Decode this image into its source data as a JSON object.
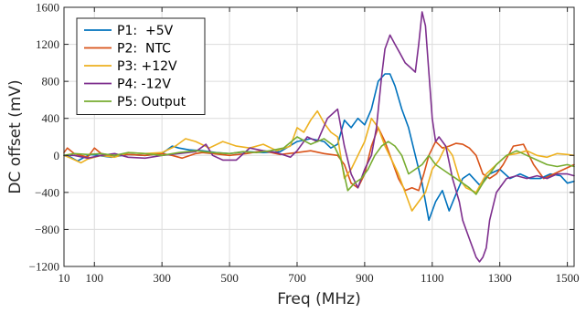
{
  "chart_data": {
    "type": "line",
    "xlabel": "Freq (MHz)",
    "ylabel": "DC offset (mV)",
    "xlim": [
      10,
      1520
    ],
    "ylim": [
      -1200,
      1600
    ],
    "grid": true,
    "legend_position": "top-left",
    "xticks": [
      10,
      100,
      300,
      500,
      700,
      900,
      1100,
      1300,
      1500
    ],
    "yticks": [
      -1200,
      -800,
      -400,
      0,
      400,
      800,
      1200,
      1600
    ],
    "xtick_labels": [
      "10",
      "100",
      "300",
      "500",
      "700",
      "900",
      "1100",
      "1300",
      "1500"
    ],
    "ytick_labels": [
      "−1200",
      "−800",
      "−400",
      "0",
      "400",
      "800",
      "1200",
      "1600"
    ],
    "series": [
      {
        "name": "P1:  +5V",
        "color": "#0072BD",
        "x": [
          10,
          30,
          50,
          70,
          90,
          110,
          150,
          200,
          250,
          300,
          330,
          350,
          380,
          420,
          460,
          500,
          550,
          600,
          650,
          700,
          740,
          780,
          800,
          820,
          840,
          860,
          880,
          900,
          920,
          940,
          960,
          975,
          990,
          1010,
          1030,
          1050,
          1070,
          1090,
          1110,
          1130,
          1150,
          1170,
          1190,
          1210,
          1240,
          1270,
          1300,
          1330,
          1360,
          1390,
          1420,
          1450,
          1480,
          1500,
          1520
        ],
        "y": [
          0,
          -20,
          -60,
          -20,
          10,
          0,
          -20,
          10,
          0,
          20,
          100,
          80,
          60,
          50,
          30,
          20,
          40,
          30,
          40,
          150,
          180,
          150,
          80,
          120,
          380,
          300,
          400,
          330,
          500,
          800,
          880,
          880,
          750,
          500,
          300,
          0,
          -300,
          -700,
          -500,
          -380,
          -600,
          -420,
          -250,
          -200,
          -320,
          -200,
          -150,
          -250,
          -200,
          -250,
          -250,
          -200,
          -220,
          -300,
          -280
        ]
      },
      {
        "name": "P2:  NTC",
        "color": "#D95319",
        "x": [
          10,
          20,
          40,
          60,
          80,
          100,
          120,
          150,
          200,
          250,
          300,
          330,
          360,
          400,
          420,
          450,
          500,
          550,
          600,
          650,
          700,
          740,
          780,
          820,
          840,
          860,
          880,
          900,
          920,
          940,
          960,
          980,
          1000,
          1020,
          1040,
          1060,
          1075,
          1090,
          1110,
          1130,
          1150,
          1170,
          1190,
          1210,
          1230,
          1250,
          1270,
          1290,
          1310,
          1340,
          1370,
          1400,
          1430,
          1460,
          1490,
          1520
        ],
        "y": [
          30,
          80,
          20,
          0,
          -20,
          80,
          20,
          0,
          10,
          0,
          20,
          0,
          -30,
          20,
          30,
          20,
          0,
          20,
          50,
          10,
          30,
          50,
          20,
          0,
          -100,
          -300,
          -350,
          -200,
          100,
          300,
          150,
          -50,
          -250,
          -380,
          -350,
          -380,
          -200,
          0,
          150,
          80,
          100,
          130,
          120,
          80,
          0,
          -200,
          -250,
          -200,
          -100,
          100,
          120,
          -100,
          -250,
          -200,
          -150,
          -100
        ]
      },
      {
        "name": "P3: +12V",
        "color": "#EDB120",
        "x": [
          10,
          30,
          60,
          80,
          120,
          160,
          200,
          250,
          300,
          340,
          370,
          400,
          440,
          480,
          520,
          560,
          600,
          640,
          680,
          700,
          720,
          740,
          760,
          780,
          800,
          820,
          840,
          860,
          880,
          900,
          920,
          940,
          960,
          980,
          1000,
          1020,
          1040,
          1060,
          1080,
          1100,
          1120,
          1140,
          1160,
          1180,
          1200,
          1230,
          1260,
          1290,
          1320,
          1350,
          1380,
          1410,
          1440,
          1470,
          1500,
          1520
        ],
        "y": [
          0,
          -30,
          -80,
          -40,
          0,
          -20,
          30,
          20,
          30,
          100,
          180,
          150,
          80,
          150,
          100,
          80,
          120,
          50,
          100,
          300,
          250,
          380,
          480,
          350,
          250,
          200,
          -250,
          -150,
          0,
          150,
          400,
          300,
          100,
          -50,
          -200,
          -400,
          -600,
          -500,
          -400,
          -150,
          -50,
          100,
          0,
          -250,
          -350,
          -400,
          -200,
          -100,
          0,
          20,
          50,
          0,
          -20,
          20,
          10,
          0
        ]
      },
      {
        "name": "P4: -12V",
        "color": "#7E2F8E",
        "x": [
          10,
          40,
          80,
          120,
          160,
          200,
          250,
          300,
          350,
          400,
          430,
          450,
          480,
          520,
          560,
          600,
          640,
          680,
          700,
          730,
          760,
          790,
          820,
          840,
          860,
          880,
          900,
          920,
          935,
          950,
          960,
          975,
          990,
          1005,
          1020,
          1035,
          1050,
          1060,
          1070,
          1080,
          1090,
          1100,
          1110,
          1120,
          1140,
          1160,
          1180,
          1190,
          1200,
          1210,
          1220,
          1230,
          1240,
          1250,
          1260,
          1270,
          1290,
          1320,
          1350,
          1380,
          1410,
          1440,
          1470,
          1500,
          1520
        ],
        "y": [
          0,
          0,
          -30,
          0,
          20,
          -20,
          -30,
          0,
          20,
          40,
          120,
          0,
          -50,
          -50,
          80,
          50,
          30,
          -20,
          50,
          200,
          150,
          400,
          500,
          100,
          -200,
          -350,
          -150,
          0,
          300,
          850,
          1150,
          1300,
          1200,
          1100,
          1000,
          950,
          900,
          1200,
          1550,
          1400,
          900,
          400,
          150,
          200,
          100,
          -250,
          -500,
          -700,
          -800,
          -900,
          -1000,
          -1100,
          -1150,
          -1100,
          -1000,
          -700,
          -400,
          -250,
          -220,
          -250,
          -220,
          -250,
          -200,
          -200,
          -220
        ]
      },
      {
        "name": "P5: Output",
        "color": "#77AC30",
        "x": [
          10,
          40,
          80,
          120,
          160,
          200,
          250,
          300,
          350,
          400,
          450,
          500,
          540,
          580,
          620,
          660,
          700,
          740,
          780,
          810,
          830,
          850,
          870,
          890,
          910,
          930,
          950,
          970,
          990,
          1010,
          1030,
          1050,
          1070,
          1090,
          1110,
          1130,
          1150,
          1170,
          1190,
          1210,
          1230,
          1250,
          1270,
          1290,
          1320,
          1350,
          1380,
          1410,
          1440,
          1470,
          1500,
          1520
        ],
        "y": [
          0,
          20,
          10,
          20,
          0,
          30,
          20,
          0,
          30,
          50,
          30,
          20,
          40,
          30,
          50,
          80,
          200,
          120,
          180,
          100,
          -50,
          -380,
          -300,
          -250,
          -150,
          0,
          100,
          150,
          100,
          0,
          -200,
          -150,
          -100,
          0,
          -100,
          -150,
          -200,
          -250,
          -300,
          -350,
          -420,
          -300,
          -200,
          -100,
          0,
          50,
          0,
          -50,
          -100,
          -120,
          -100,
          -120
        ]
      }
    ]
  }
}
